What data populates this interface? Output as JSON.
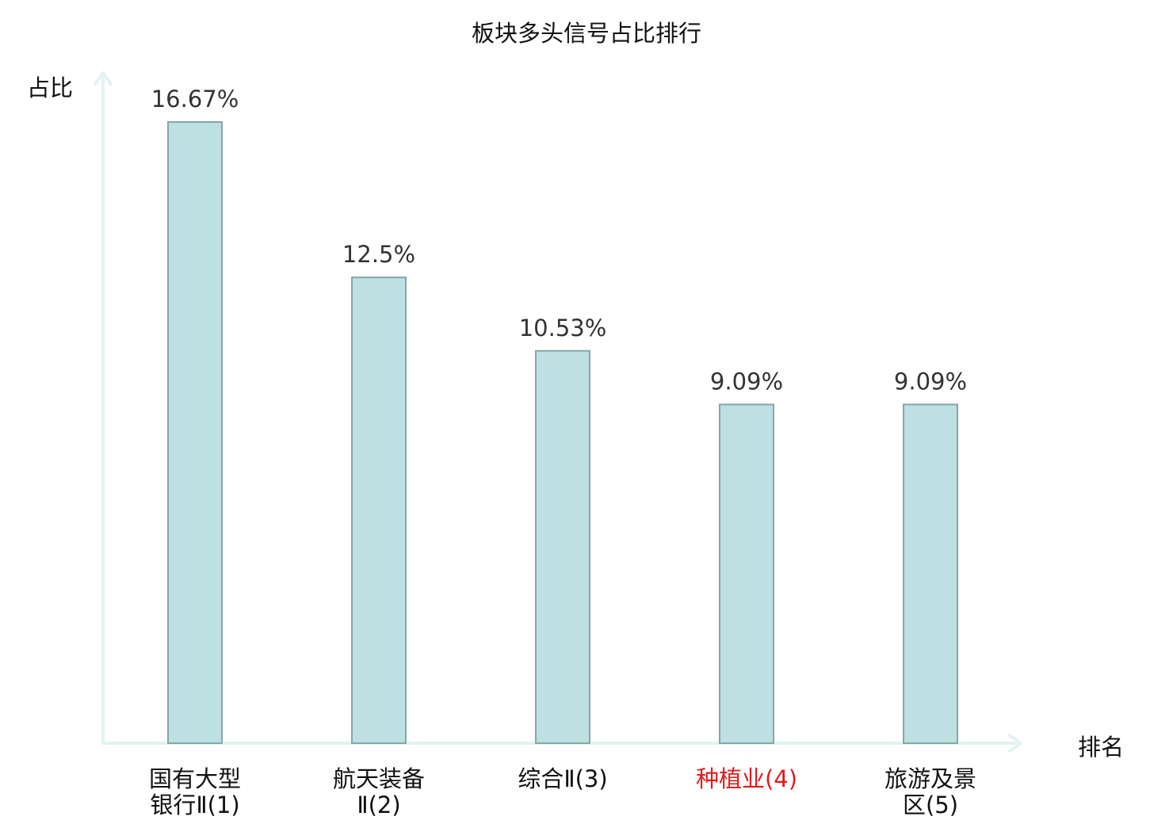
{
  "chart_data": {
    "type": "bar",
    "title": "板块多头信号占比排行",
    "xlabel": "排名",
    "ylabel": "占比",
    "ylim": [
      0,
      16.67
    ],
    "grid": false,
    "legend": "none",
    "categories": [
      [
        "国有大型",
        "银行Ⅱ(1)"
      ],
      [
        "航天装备",
        "Ⅱ(2)"
      ],
      [
        "综合Ⅱ(3)"
      ],
      [
        "种植业(4)"
      ],
      [
        "旅游及景",
        "区(5)"
      ]
    ],
    "values": [
      16.67,
      12.5,
      10.53,
      9.09,
      9.09
    ],
    "value_labels": [
      "16.67%",
      "12.5%",
      "10.53%",
      "9.09%",
      "9.09%"
    ],
    "highlight_index": 3,
    "colors": {
      "bar_fill": "#bde0e2",
      "bar_stroke": "#87a6a6",
      "axis": "#e2f3f1",
      "text": "#111111",
      "value_text": "#333333",
      "highlight": "#e41a1c"
    }
  }
}
